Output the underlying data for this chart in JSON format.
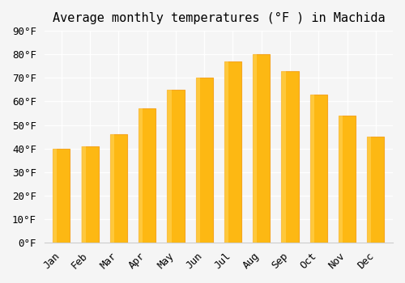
{
  "months": [
    "Jan",
    "Feb",
    "Mar",
    "Apr",
    "May",
    "Jun",
    "Jul",
    "Aug",
    "Sep",
    "Oct",
    "Nov",
    "Dec"
  ],
  "values": [
    40,
    41,
    46,
    57,
    65,
    70,
    77,
    80,
    73,
    63,
    54,
    45
  ],
  "bar_color_face": "#FDB813",
  "bar_color_edge": "#F5A623",
  "title": "Average monthly temperatures (°F ) in Machida",
  "ylabel": "",
  "xlabel": "",
  "ylim": [
    0,
    90
  ],
  "ytick_step": 10,
  "background_color": "#f5f5f5",
  "grid_color": "#ffffff",
  "title_fontsize": 11,
  "tick_fontsize": 9,
  "font_family": "monospace"
}
